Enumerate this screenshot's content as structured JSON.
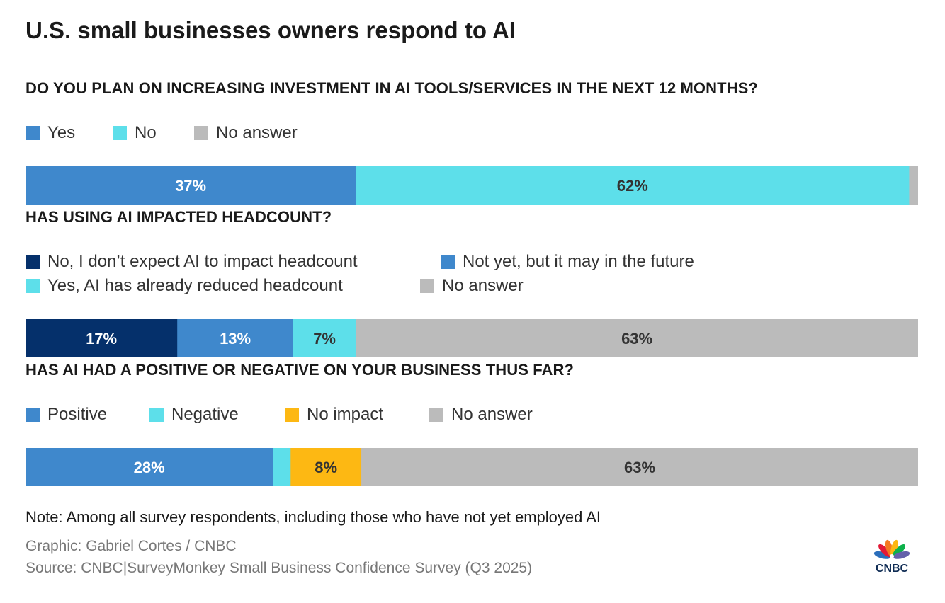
{
  "title": "U.S. small businesses owners respond to AI",
  "colors": {
    "navy": "#05306b",
    "blue": "#3f88cc",
    "cyan": "#5ddfea",
    "gray": "#bbbbbb",
    "yellow": "#fdb813",
    "label_light": "#ffffff",
    "label_dark": "#333333"
  },
  "chart_data": [
    {
      "type": "bar",
      "orientation": "horizontal-stacked",
      "title": "DO YOU PLAN ON INCREASING INVESTMENT IN AI TOOLS/SERVICES IN THE NEXT 12 MONTHS?",
      "legend": [
        "Yes",
        "No",
        "No answer"
      ],
      "series": [
        {
          "name": "Yes",
          "value": 37,
          "label": "37%",
          "color": "blue",
          "text": "label_light"
        },
        {
          "name": "No",
          "value": 62,
          "label": "62%",
          "color": "cyan",
          "text": "label_dark"
        },
        {
          "name": "No answer",
          "value": 1,
          "label": "",
          "color": "gray",
          "text": "label_dark"
        }
      ]
    },
    {
      "type": "bar",
      "orientation": "horizontal-stacked",
      "title": "HAS USING AI IMPACTED HEADCOUNT?",
      "legend": [
        "No, I don’t expect AI to impact headcount",
        "Not yet, but it may in the future",
        "Yes, AI has already reduced headcount",
        "No answer"
      ],
      "series": [
        {
          "name": "No, I don’t expect AI to impact headcount",
          "value": 17,
          "label": "17%",
          "color": "navy",
          "text": "label_light"
        },
        {
          "name": "Not yet, but it may in the future",
          "value": 13,
          "label": "13%",
          "color": "blue",
          "text": "label_light"
        },
        {
          "name": "Yes, AI has already reduced headcount",
          "value": 7,
          "label": "7%",
          "color": "cyan",
          "text": "label_dark"
        },
        {
          "name": "No answer",
          "value": 63,
          "label": "63%",
          "color": "gray",
          "text": "label_dark"
        }
      ]
    },
    {
      "type": "bar",
      "orientation": "horizontal-stacked",
      "title": "HAS AI HAD A POSITIVE OR NEGATIVE ON YOUR BUSINESS THUS FAR?",
      "legend": [
        "Positive",
        "Negative",
        "No impact",
        "No answer"
      ],
      "series": [
        {
          "name": "Positive",
          "value": 28,
          "label": "28%",
          "color": "blue",
          "text": "label_light"
        },
        {
          "name": "Negative",
          "value": 2,
          "label": "",
          "color": "cyan",
          "text": "label_dark"
        },
        {
          "name": "No impact",
          "value": 8,
          "label": "8%",
          "color": "yellow",
          "text": "label_dark"
        },
        {
          "name": "No answer",
          "value": 63,
          "label": "63%",
          "color": "gray",
          "text": "label_dark"
        }
      ]
    }
  ],
  "note": "Note: Among all survey respondents, including those who have not yet employed AI",
  "credit": "Graphic: Gabriel Cortes / CNBC",
  "source": "Source: CNBC|SurveyMonkey Small Business Confidence Survey (Q3 2025)",
  "logo": {
    "text": "CNBC",
    "icon": "peacock-icon"
  }
}
